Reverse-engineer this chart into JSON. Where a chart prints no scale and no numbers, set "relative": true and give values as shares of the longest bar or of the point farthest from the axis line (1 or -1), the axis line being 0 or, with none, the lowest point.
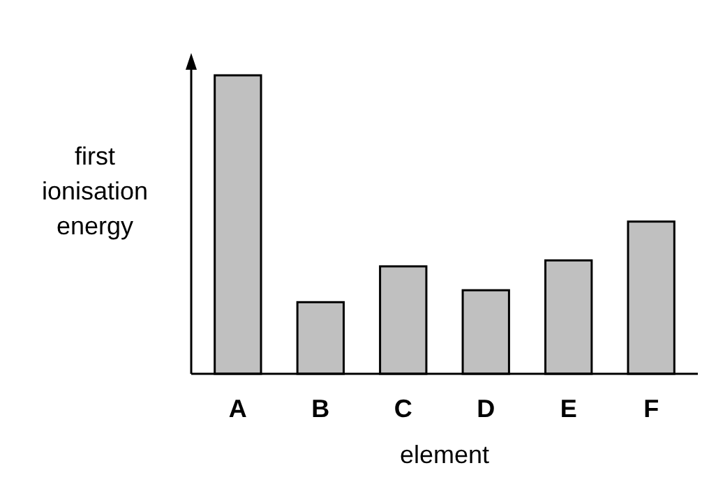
{
  "chart_data": {
    "type": "bar",
    "relative": true,
    "categories": [
      "A",
      "B",
      "C",
      "D",
      "E",
      "F"
    ],
    "values": [
      1,
      0.24,
      0.36,
      0.28,
      0.38,
      0.51
    ],
    "color": "#c0c0c0",
    "xlabel": "element",
    "ylabel": "first ionisation energy"
  }
}
